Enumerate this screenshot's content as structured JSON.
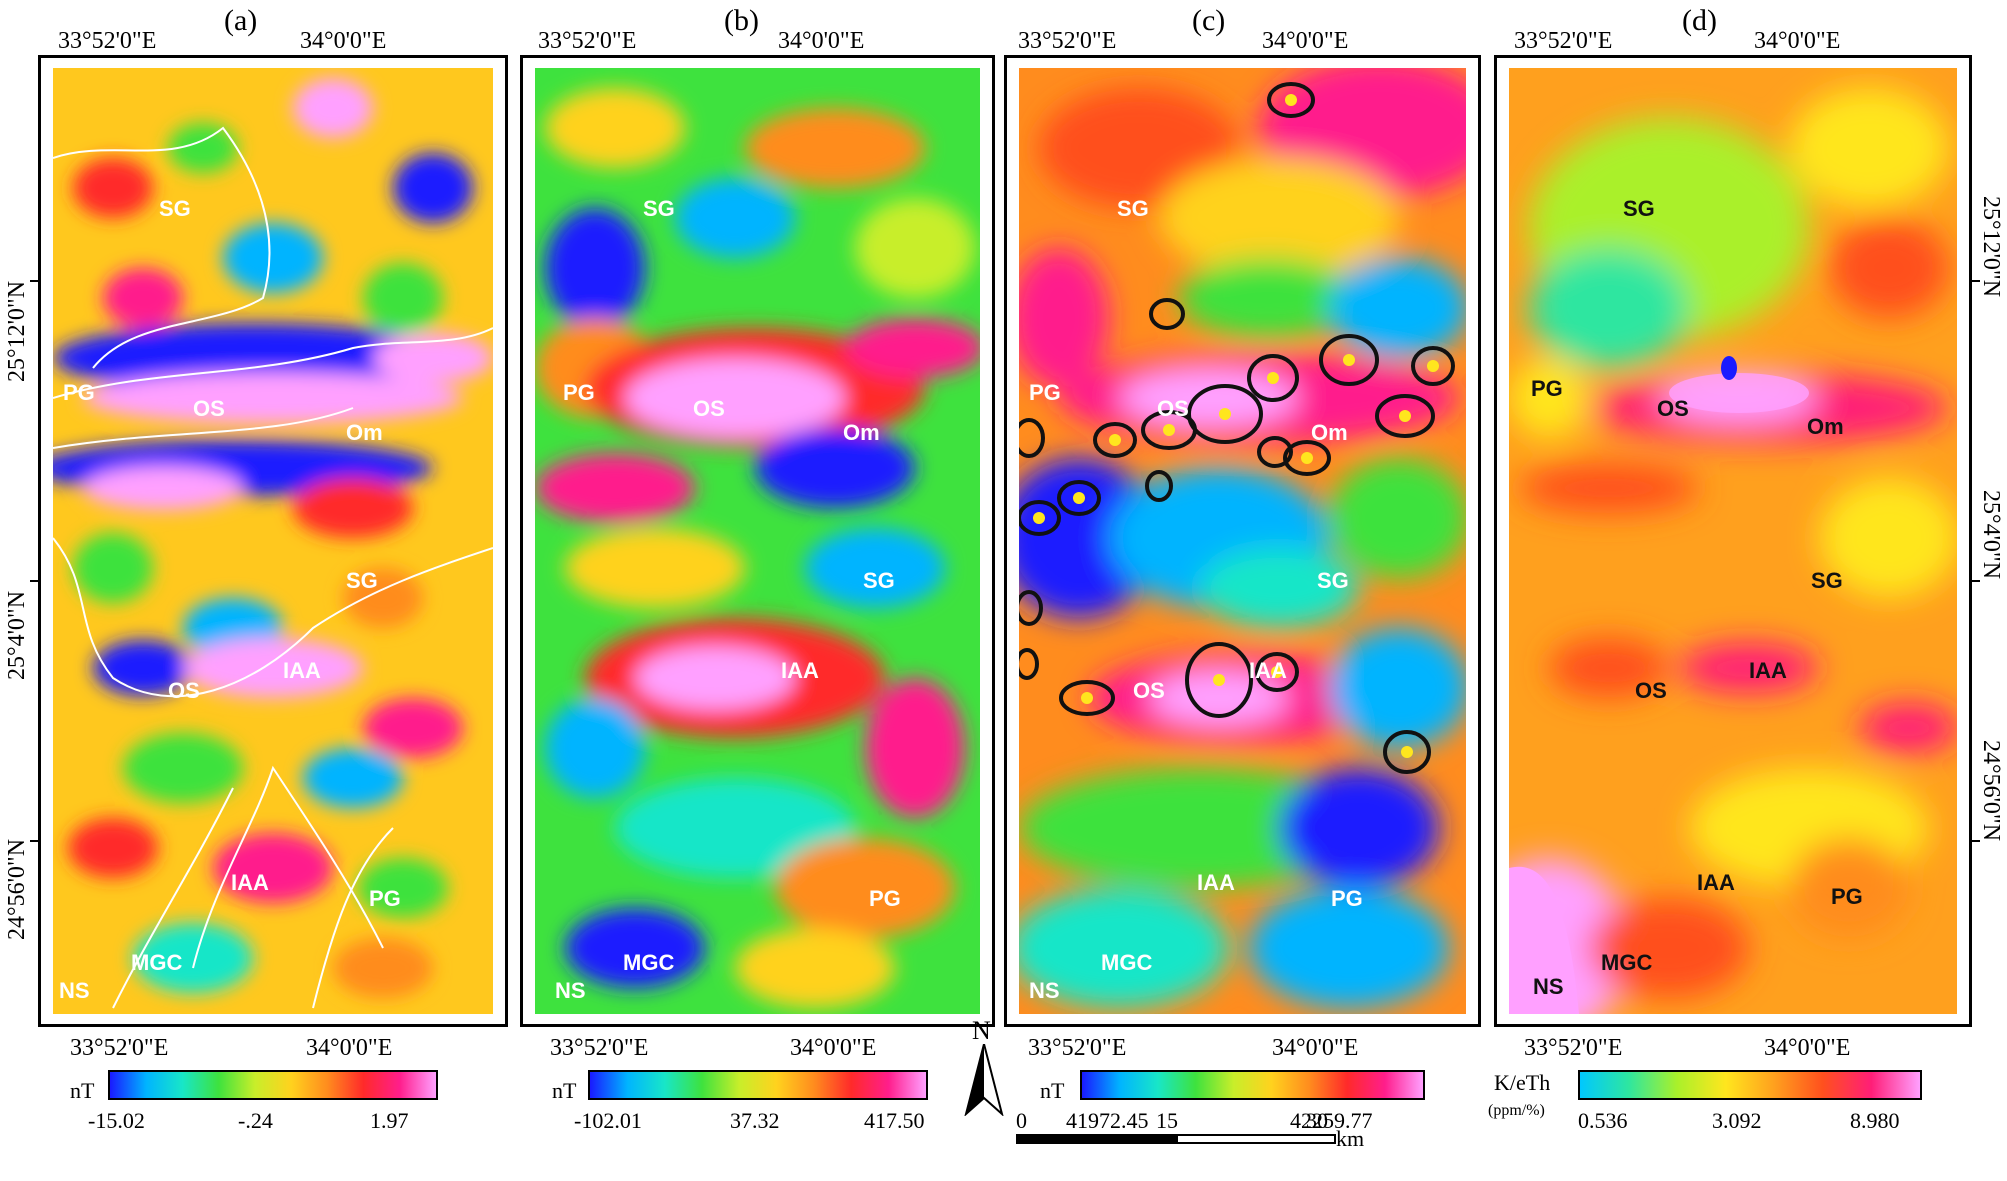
{
  "panels": [
    {
      "id": "a",
      "label": "(a)",
      "top_lon": [
        "33°52'0\"E",
        "34°0'0\"E"
      ],
      "bottom_lon": [
        "33°52'0\"E",
        "34°0'0\"E"
      ],
      "unit": "nT",
      "ticks": [
        "-15.02",
        "-.24",
        "1.97"
      ],
      "units_labels": [
        "SG",
        "PG",
        "OS",
        "Om",
        "SG",
        "OS",
        "IAA",
        "IAA",
        "PG",
        "NS",
        "MGC"
      ]
    },
    {
      "id": "b",
      "label": "(b)",
      "top_lon": [
        "33°52'0\"E",
        "34°0'0\"E"
      ],
      "bottom_lon": [
        "33°52'0\"E",
        "34°0'0\"E"
      ],
      "unit": "nT",
      "ticks": [
        "-102.01",
        "37.32",
        "417.50"
      ],
      "units_labels": [
        "SG",
        "PG",
        "OS",
        "Om",
        "SG",
        "IAA",
        "PG",
        "NS",
        "MGC"
      ]
    },
    {
      "id": "c",
      "label": "(c)",
      "top_lon": [
        "33°52'0\"E",
        "34°0'0\"E"
      ],
      "bottom_lon": [
        "33°52'0\"E",
        "34°0'0\"E"
      ],
      "unit": "nT",
      "ticks": [
        "41972.45",
        "42259.77"
      ],
      "units_labels": [
        "SG",
        "PG",
        "OS",
        "Om",
        "SG",
        "OS",
        "IAA",
        "IAA",
        "PG",
        "NS",
        "MGC"
      ]
    },
    {
      "id": "d",
      "label": "(d)",
      "top_lon": [
        "33°52'0\"E",
        "34°0'0\"E"
      ],
      "bottom_lon": [
        "33°52'0\"E",
        "34°0'0\"E"
      ],
      "unit": "K/eTh",
      "unit_sub": "(ppm/%)",
      "ticks": [
        "0.536",
        "3.092",
        "8.980"
      ],
      "units_labels": [
        "SG",
        "PG",
        "OS",
        "Om",
        "SG",
        "OS",
        "IAA",
        "IAA",
        "PG",
        "NS",
        "MGC"
      ]
    }
  ],
  "latitudes": [
    "25°12'0\"N",
    "25°4'0\"N",
    "24°56'0\"N"
  ],
  "north_arrow": "N",
  "scale_bar": {
    "ticks": [
      "0",
      "15",
      "30"
    ],
    "unit": "km"
  },
  "colors": {
    "ramp_rainbow": [
      "#1a1aff",
      "#00b4ff",
      "#18e6c8",
      "#3ee23e",
      "#c8ee2a",
      "#ffd21e",
      "#ff8c1e",
      "#ff2a2a",
      "#ff1e8c",
      "#ffa0ff"
    ],
    "ramp_radio": [
      "#00c8ff",
      "#2ee6a0",
      "#aaf02a",
      "#ffe61e",
      "#ffa01e",
      "#ff501e",
      "#ff1e78",
      "#ffa0ff"
    ]
  }
}
